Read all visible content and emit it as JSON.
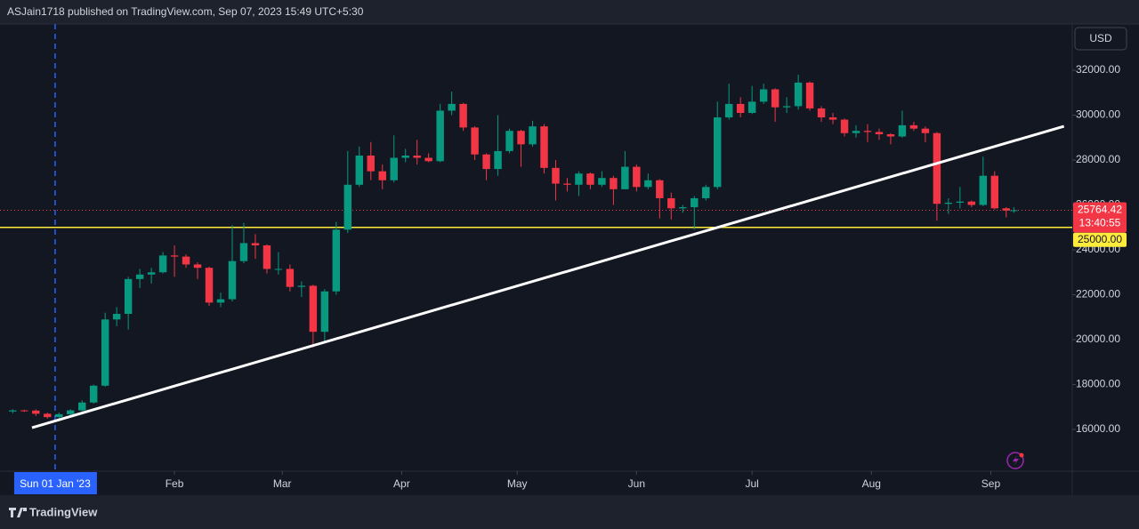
{
  "header": {
    "title": "ASJain1718 published on TradingView.com, Sep 07, 2023 15:49 UTC+5:30"
  },
  "footer": {
    "brand": "TradingView"
  },
  "chart_data": {
    "type": "candlestick",
    "currency": "USD",
    "up_color": "#089981",
    "down_color": "#f23645",
    "x": [
      "2022-12-21",
      "2022-12-24",
      "2022-12-27",
      "2022-12-30",
      "2023-01-02",
      "2023-01-05",
      "2023-01-08",
      "2023-01-11",
      "2023-01-14",
      "2023-01-17",
      "2023-01-20",
      "2023-01-23",
      "2023-01-26",
      "2023-01-29",
      "2023-02-01",
      "2023-02-04",
      "2023-02-07",
      "2023-02-10",
      "2023-02-13",
      "2023-02-16",
      "2023-02-19",
      "2023-02-22",
      "2023-02-25",
      "2023-02-28",
      "2023-03-03",
      "2023-03-06",
      "2023-03-09",
      "2023-03-12",
      "2023-03-15",
      "2023-03-18",
      "2023-03-21",
      "2023-03-24",
      "2023-03-27",
      "2023-03-30",
      "2023-04-02",
      "2023-04-05",
      "2023-04-08",
      "2023-04-11",
      "2023-04-14",
      "2023-04-17",
      "2023-04-20",
      "2023-04-23",
      "2023-04-26",
      "2023-04-29",
      "2023-05-02",
      "2023-05-05",
      "2023-05-08",
      "2023-05-11",
      "2023-05-14",
      "2023-05-17",
      "2023-05-20",
      "2023-05-23",
      "2023-05-26",
      "2023-05-29",
      "2023-06-01",
      "2023-06-04",
      "2023-06-07",
      "2023-06-10",
      "2023-06-13",
      "2023-06-16",
      "2023-06-19",
      "2023-06-22",
      "2023-06-25",
      "2023-06-28",
      "2023-07-01",
      "2023-07-04",
      "2023-07-07",
      "2023-07-10",
      "2023-07-13",
      "2023-07-16",
      "2023-07-19",
      "2023-07-22",
      "2023-07-25",
      "2023-07-28",
      "2023-07-31",
      "2023-08-03",
      "2023-08-06",
      "2023-08-09",
      "2023-08-12",
      "2023-08-15",
      "2023-08-18",
      "2023-08-21",
      "2023-08-24",
      "2023-08-27",
      "2023-08-30",
      "2023-09-02",
      "2023-09-05",
      "2023-09-07"
    ],
    "open": [
      16800,
      16850,
      16840,
      16700,
      16550,
      16680,
      16850,
      17200,
      17950,
      20900,
      21150,
      22700,
      22900,
      23000,
      23750,
      23700,
      23350,
      23200,
      21650,
      21800,
      23500,
      24300,
      24200,
      23150,
      23150,
      22350,
      22400,
      20350,
      22150,
      24900,
      26900,
      28200,
      27500,
      27100,
      28100,
      28200,
      28100,
      27950,
      30200,
      30500,
      29450,
      28250,
      27600,
      28400,
      29300,
      28700,
      29500,
      27650,
      26950,
      26900,
      27400,
      26900,
      27200,
      26700,
      27700,
      26800,
      27100,
      26300,
      25850,
      25900,
      26300,
      26800,
      29900,
      30500,
      30100,
      30600,
      31150,
      30350,
      30400,
      31450,
      30300,
      29900,
      29800,
      29200,
      29300,
      29250,
      29150,
      29050,
      29550,
      29400,
      29200,
      26050,
      26100,
      26150,
      26000,
      27300,
      25850,
      25750
    ],
    "high": [
      16900,
      16880,
      16900,
      16750,
      16760,
      16900,
      17300,
      18000,
      21200,
      21450,
      22800,
      23150,
      23200,
      23900,
      24200,
      23800,
      23450,
      23250,
      22100,
      25100,
      25200,
      24700,
      24250,
      23900,
      23350,
      22600,
      22450,
      22250,
      25250,
      28400,
      28600,
      28800,
      27800,
      29100,
      28500,
      28900,
      28300,
      30500,
      31050,
      30550,
      29500,
      28300,
      30000,
      29400,
      29350,
      29750,
      29600,
      28000,
      27200,
      27500,
      27450,
      27500,
      27300,
      28400,
      27800,
      27400,
      27150,
      26550,
      26000,
      26400,
      26900,
      30600,
      31400,
      30800,
      31300,
      31400,
      31200,
      30800,
      31800,
      31500,
      30400,
      30100,
      29850,
      29550,
      29600,
      29400,
      29200,
      30200,
      29700,
      29500,
      29250,
      26300,
      26800,
      26200,
      28150,
      27500,
      25900,
      25900
    ],
    "low": [
      16720,
      16780,
      16600,
      16480,
      16500,
      16600,
      16800,
      17150,
      17900,
      20600,
      20450,
      22300,
      22500,
      22950,
      22800,
      23200,
      22700,
      21500,
      21450,
      21700,
      23400,
      23600,
      22950,
      22900,
      22150,
      21900,
      19650,
      19900,
      22000,
      24750,
      26800,
      27100,
      26700,
      27000,
      27900,
      27800,
      27900,
      27900,
      30000,
      29300,
      28000,
      27100,
      27300,
      28300,
      27700,
      28600,
      27400,
      26200,
      26600,
      26400,
      26700,
      26800,
      26000,
      26700,
      26600,
      26700,
      25400,
      25350,
      25650,
      24900,
      26200,
      26700,
      29800,
      29900,
      30050,
      30500,
      29700,
      30100,
      30250,
      30200,
      29700,
      29600,
      29050,
      29000,
      28800,
      28900,
      28700,
      29000,
      29300,
      28800,
      25300,
      25600,
      25850,
      25900,
      25950,
      25800,
      25450,
      25650
    ],
    "close": [
      16850,
      16840,
      16700,
      16550,
      16680,
      16850,
      17200,
      17950,
      20900,
      21150,
      22700,
      22900,
      23000,
      23750,
      23700,
      23350,
      23200,
      21650,
      21800,
      23500,
      24300,
      24200,
      23150,
      23150,
      22350,
      22400,
      20350,
      22150,
      24900,
      26900,
      28200,
      27500,
      27100,
      28100,
      28200,
      28100,
      27950,
      30200,
      30500,
      29450,
      28250,
      27600,
      28400,
      29300,
      28700,
      29500,
      27650,
      26950,
      26900,
      27400,
      26900,
      27200,
      26700,
      27700,
      26800,
      27100,
      26300,
      25850,
      25900,
      26300,
      26800,
      29900,
      30500,
      30100,
      30600,
      31150,
      30350,
      30400,
      31450,
      30300,
      29900,
      29800,
      29200,
      29300,
      29250,
      29150,
      29050,
      29550,
      29400,
      29200,
      26050,
      26100,
      26150,
      26000,
      27300,
      25850,
      25750,
      25764.42
    ],
    "xlim": [
      "2022-12-20",
      "2023-09-21"
    ],
    "xticks": [
      {
        "value": "2023-02-01",
        "label": "Feb"
      },
      {
        "value": "2023-03-01",
        "label": "Mar"
      },
      {
        "value": "2023-04-01",
        "label": "Apr"
      },
      {
        "value": "2023-05-01",
        "label": "May"
      },
      {
        "value": "2023-06-01",
        "label": "Jun"
      },
      {
        "value": "2023-07-01",
        "label": "Jul"
      },
      {
        "value": "2023-08-01",
        "label": "Aug"
      },
      {
        "value": "2023-09-01",
        "label": "Sep"
      }
    ],
    "ylim": [
      14140,
      34060
    ],
    "yticks": [
      {
        "value": 16000,
        "label": "16000.00"
      },
      {
        "value": 18000,
        "label": "18000.00"
      },
      {
        "value": 20000,
        "label": "20000.00"
      },
      {
        "value": 22000,
        "label": "22000.00"
      },
      {
        "value": 24000,
        "label": "24000.00"
      },
      {
        "value": 26000,
        "label": "26000.00"
      },
      {
        "value": 28000,
        "label": "28000.00"
      },
      {
        "value": 30000,
        "label": "30000.00"
      },
      {
        "value": 32000,
        "label": "32000.00"
      }
    ],
    "grid": false,
    "crosshair": {
      "x": "2023-01-01",
      "label": "Sun 01 Jan '23",
      "color": "#2962ff"
    },
    "trend_line": {
      "x": [
        "2022-12-26",
        "2023-09-20"
      ],
      "y": [
        16080,
        29505
      ],
      "color": "#ffffff"
    },
    "horizontal_line": {
      "value": 25000,
      "label": "25000.00",
      "color": "#ffeb3b"
    },
    "last_price": {
      "value": 25764.42,
      "label": "25764.42",
      "countdown": "13:40:55",
      "color": "#f23645"
    }
  }
}
